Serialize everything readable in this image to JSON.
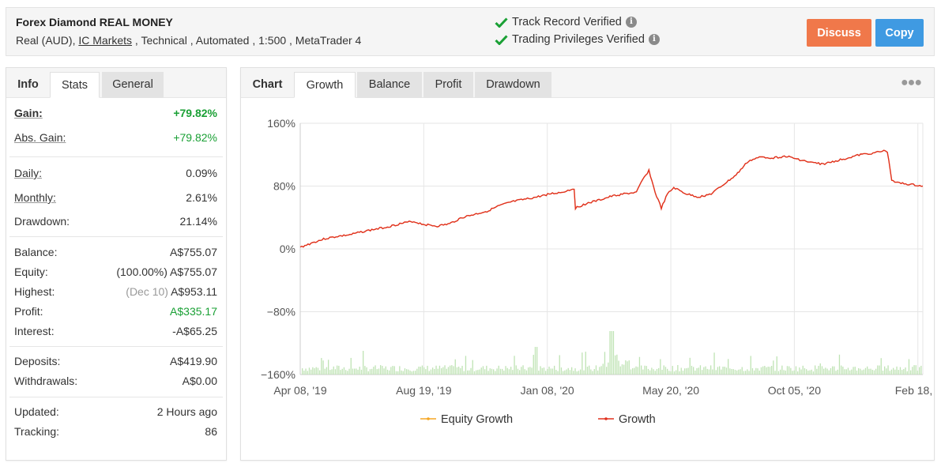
{
  "header": {
    "title": "Forex Diamond REAL MONEY",
    "meta_prefix": "Real (AUD), ",
    "broker": "IC Markets",
    "meta_suffix": " , Technical , Automated , 1:500 , MetaTrader 4",
    "verify_track": "Track Record Verified",
    "verify_trading": "Trading Privileges Verified",
    "discuss_label": "Discuss",
    "copy_label": "Copy",
    "colors": {
      "discuss": "#f0784a",
      "copy": "#3f9ae2",
      "check": "#1aa035"
    }
  },
  "left_tabs": {
    "head": "Info",
    "stats": "Stats",
    "general": "General"
  },
  "stats": {
    "gain_label": "Gain:",
    "gain_value": "+79.82%",
    "abs_gain_label": "Abs. Gain:",
    "abs_gain_value": "+79.82%",
    "daily_label": "Daily:",
    "daily_value": "0.09%",
    "monthly_label": "Monthly:",
    "monthly_value": "2.61%",
    "drawdown_label": "Drawdown:",
    "drawdown_value": "21.14%",
    "balance_label": "Balance:",
    "balance_value": "A$755.07",
    "equity_label": "Equity:",
    "equity_note": "(100.00%)",
    "equity_value": "A$755.07",
    "highest_label": "Highest:",
    "highest_note": "(Dec 10)",
    "highest_value": "A$953.11",
    "profit_label": "Profit:",
    "profit_value": "A$335.17",
    "interest_label": "Interest:",
    "interest_value": "-A$65.25",
    "deposits_label": "Deposits:",
    "deposits_value": "A$419.90",
    "withdrawals_label": "Withdrawals:",
    "withdrawals_value": "A$0.00",
    "updated_label": "Updated:",
    "updated_value": "2 Hours ago",
    "tracking_label": "Tracking:",
    "tracking_value": "86"
  },
  "chart_tabs": {
    "head": "Chart",
    "growth": "Growth",
    "balance": "Balance",
    "profit": "Profit",
    "drawdown": "Drawdown"
  },
  "chart_data": {
    "type": "line",
    "y_ticks": [
      "160%",
      "80%",
      "0%",
      "−80%",
      "−160%"
    ],
    "ylim": [
      -160,
      160
    ],
    "x_ticks": [
      "Apr 08, '19",
      "Aug 19, '19",
      "Jan 08, '20",
      "May 20, '20",
      "Oct 05, '20",
      "Feb 18, …"
    ],
    "grid": true,
    "legend_position": "bottom",
    "series": [
      {
        "name": "Equity Growth",
        "color": "#f5a623"
      },
      {
        "name": "Growth",
        "color": "#e0301e",
        "x_index": [
          0,
          2,
          4,
          6,
          8,
          10,
          12,
          14,
          16,
          18,
          20,
          22,
          24,
          26,
          28,
          30,
          32,
          34,
          36,
          38,
          40,
          42,
          44,
          44.2,
          46,
          48,
          50,
          52,
          54,
          55,
          56,
          57,
          58,
          59,
          60,
          62,
          64,
          66,
          68,
          70,
          72,
          74,
          76,
          78,
          80,
          82,
          84,
          86,
          88,
          90,
          92,
          94,
          94.3,
          95,
          96,
          98,
          100
        ],
        "values": [
          2,
          8,
          13,
          16,
          18,
          22,
          25,
          28,
          32,
          35,
          31,
          29,
          32,
          40,
          44,
          48,
          55,
          60,
          63,
          66,
          70,
          72,
          77,
          52,
          58,
          62,
          67,
          70,
          72,
          88,
          100,
          72,
          52,
          70,
          78,
          70,
          66,
          70,
          82,
          94,
          112,
          117,
          116,
          118,
          114,
          110,
          108,
          112,
          116,
          120,
          122,
          125,
          124,
          88,
          84,
          82,
          80
        ]
      }
    ],
    "volume_bars": true
  }
}
